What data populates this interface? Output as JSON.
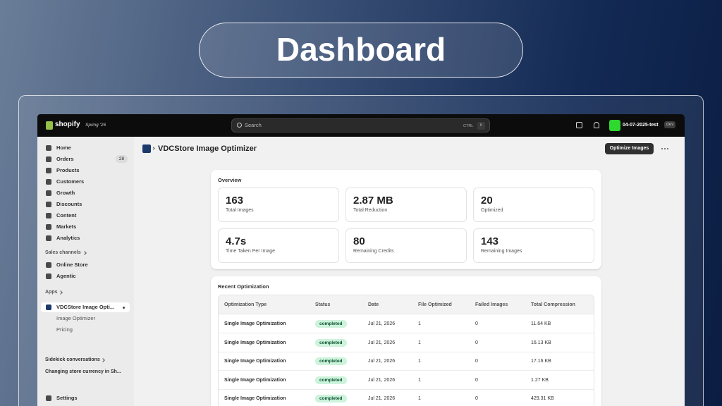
{
  "header": {
    "title": "Dashboard"
  },
  "topbar": {
    "brand": "shopify",
    "edition": "Spring '26",
    "search": "Search",
    "shortcut": [
      "CTRL",
      "K"
    ],
    "store": "04-07-2025-test",
    "badge": "dev"
  },
  "sidebar": {
    "nav": [
      {
        "label": "Home"
      },
      {
        "label": "Orders",
        "count": 28
      },
      {
        "label": "Products"
      },
      {
        "label": "Customers"
      },
      {
        "label": "Growth"
      },
      {
        "label": "Discounts"
      },
      {
        "label": "Content"
      },
      {
        "label": "Markets"
      },
      {
        "label": "Analytics"
      }
    ],
    "sales_channels": {
      "title": "Sales channels",
      "items": [
        "Online Store",
        "Agentic"
      ]
    },
    "apps": {
      "title": "Apps",
      "app": "VDCStore Image Opti...",
      "items": [
        "Image Optimizer",
        "Pricing"
      ]
    },
    "sidekick": {
      "title": "Sidekick conversations",
      "items": [
        "Changing store currency in Sh..."
      ]
    },
    "settings": "Settings"
  },
  "page": {
    "app_name": "VDCStore Image Optimizer",
    "action": "Optimize Images"
  },
  "overview": {
    "title": "Overview",
    "stats": [
      {
        "value": 163,
        "label": "Total Images"
      },
      {
        "value": "2.87 MB",
        "label": "Total Reduction"
      },
      {
        "value": 20,
        "label": "Optimized"
      },
      {
        "value": "4.7s",
        "label": "Time Taken Per Image"
      },
      {
        "value": 80,
        "label": "Remaining Credits"
      },
      {
        "value": 143,
        "label": "Remaining Images"
      }
    ]
  },
  "table": {
    "title": "Recent Optimization",
    "columns": [
      "Optimization Type",
      "Status",
      "Date",
      "File Optimized",
      "Failed Images",
      "Total Compression"
    ],
    "rows": [
      [
        "Single Image Optimization",
        "completed",
        "Jul 21, 2026",
        1,
        0,
        "11.64 KB"
      ],
      [
        "Single Image Optimization",
        "completed",
        "Jul 21, 2026",
        1,
        0,
        "16.13 KB"
      ],
      [
        "Single Image Optimization",
        "completed",
        "Jul 21, 2026",
        1,
        0,
        "17.16 KB"
      ],
      [
        "Single Image Optimization",
        "completed",
        "Jul 21, 2026",
        1,
        0,
        "1.27 KB"
      ],
      [
        "Single Image Optimization",
        "completed",
        "Jul 21, 2026",
        1,
        0,
        "429.31 KB"
      ]
    ]
  }
}
